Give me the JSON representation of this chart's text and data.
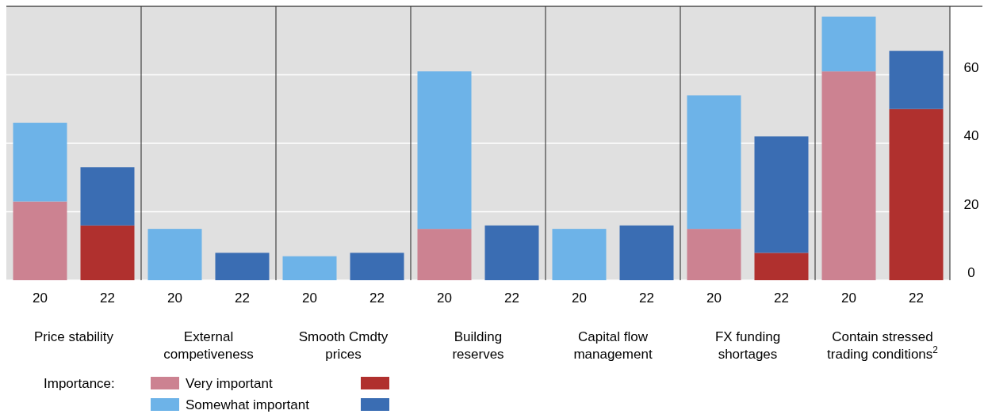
{
  "chart_data": {
    "type": "bar",
    "stacked": true,
    "categories": [
      "20",
      "22",
      "20",
      "22",
      "20",
      "22",
      "20",
      "22",
      "20",
      "22",
      "20",
      "22",
      "20",
      "22"
    ],
    "series": [
      {
        "name": "Very important",
        "colors": [
          "#cc8291",
          "#b0302e",
          "#cc8291",
          "#b0302e",
          "#cc8291",
          "#b0302e",
          "#cc8291",
          "#b0302e",
          "#cc8291",
          "#b0302e",
          "#cc8291",
          "#b0302e",
          "#cc8291",
          "#b0302e"
        ],
        "values": [
          23,
          16,
          0,
          0,
          0,
          0,
          15,
          0,
          0,
          0,
          15,
          8,
          61,
          50
        ]
      },
      {
        "name": "Somewhat important",
        "colors": [
          "#6db3e8",
          "#3a6db3",
          "#6db3e8",
          "#3a6db3",
          "#6db3e8",
          "#3a6db3",
          "#6db3e8",
          "#3a6db3",
          "#6db3e8",
          "#3a6db3",
          "#6db3e8",
          "#3a6db3",
          "#6db3e8",
          "#3a6db3"
        ],
        "values": [
          23,
          17,
          15,
          8,
          7,
          8,
          46,
          16,
          15,
          16,
          39,
          34,
          16,
          17
        ]
      }
    ],
    "ylim": [
      0,
      80
    ],
    "yticks": [
      0,
      20,
      40,
      60
    ],
    "grid": "y",
    "legend": "bottom",
    "legend_title": "Importance:",
    "annotations": [
      "Price stability",
      "External competiveness",
      "Smooth Cmdty prices",
      "Building reserves",
      "Capital flow management",
      "FX funding shortages",
      "Contain stressed trading conditions$^{2}$"
    ]
  }
}
